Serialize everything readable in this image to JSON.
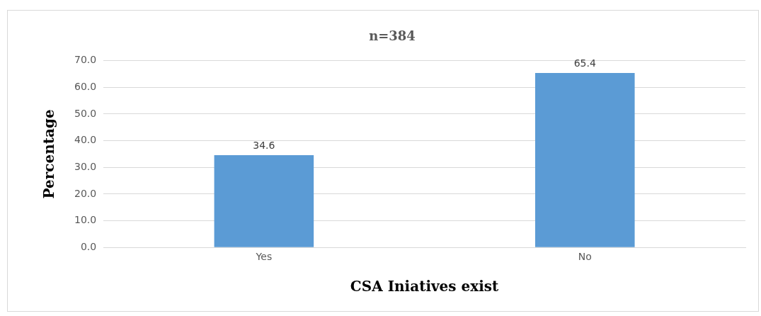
{
  "chart_data": {
    "type": "bar",
    "title": "n=384",
    "xlabel": "CSA Iniatives exist",
    "ylabel": "Percentage",
    "categories": [
      "Yes",
      "No"
    ],
    "values": [
      34.6,
      65.4
    ],
    "color": "#5b9bd5",
    "ylim": [
      0,
      70
    ],
    "yticks": [
      {
        "value": 0,
        "label": "0.0"
      },
      {
        "value": 10,
        "label": "10.0"
      },
      {
        "value": 20,
        "label": "20.0"
      },
      {
        "value": 30,
        "label": "30.0"
      },
      {
        "value": 40,
        "label": "40.0"
      },
      {
        "value": 50,
        "label": "50.0"
      },
      {
        "value": 60,
        "label": "60.0"
      },
      {
        "value": 70,
        "label": "70.0"
      }
    ],
    "grid": "y",
    "data_labels": true,
    "legend": false
  }
}
